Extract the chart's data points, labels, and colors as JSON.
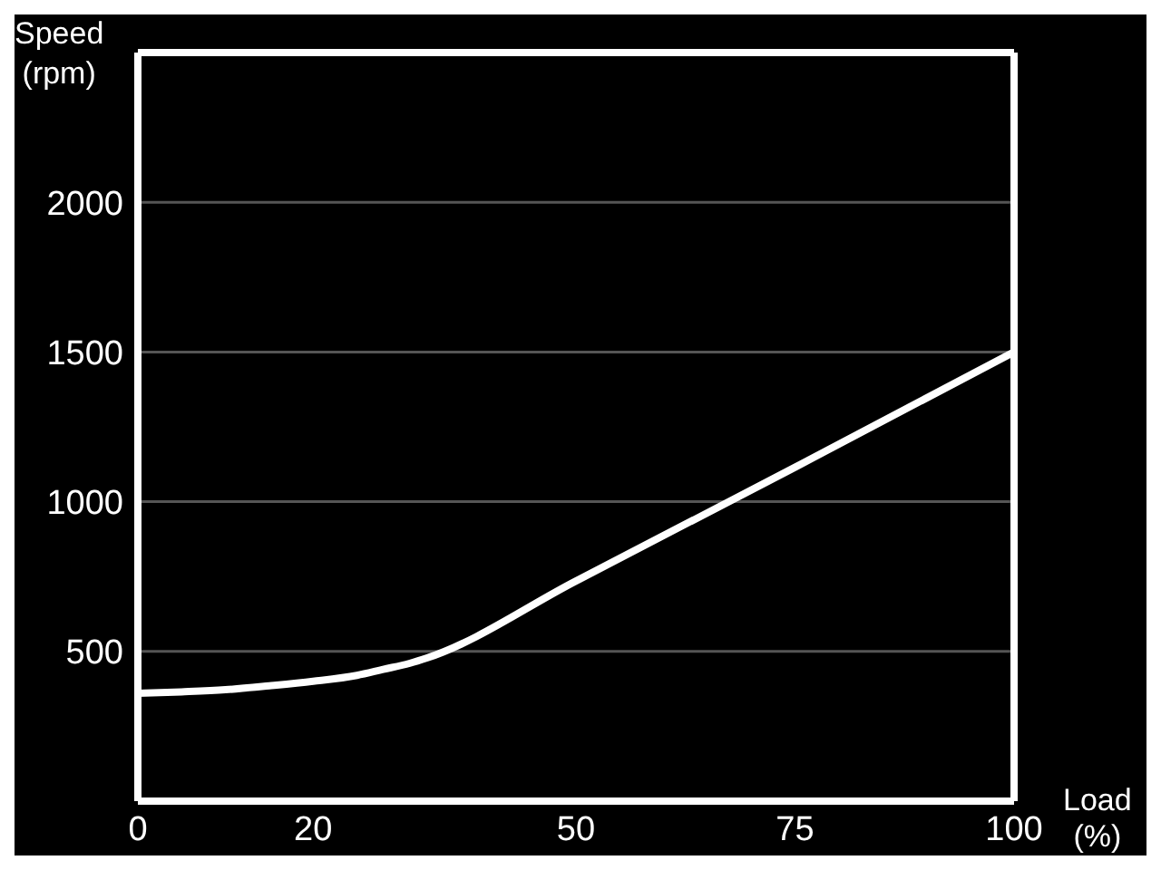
{
  "chart_data": {
    "type": "line",
    "xlabel": "Load\n(%)",
    "ylabel": "Speed\n(rpm)",
    "x": [
      0,
      5,
      10,
      15,
      20,
      25,
      28,
      31,
      33,
      50,
      75,
      100
    ],
    "series": [
      {
        "color": "#ffffff",
        "values": [
          360,
          365,
          372,
          385,
          400,
          420,
          440,
          460,
          478,
          735,
          1115,
          1500
        ]
      }
    ],
    "xlim": [
      0,
      100
    ],
    "xticks": [
      0,
      20,
      50,
      75,
      100
    ],
    "ylim": [
      0,
      2500
    ],
    "yticks": [
      500,
      1000,
      1500,
      2000
    ],
    "grid": "y",
    "marker": "none",
    "line_style": "solid"
  }
}
